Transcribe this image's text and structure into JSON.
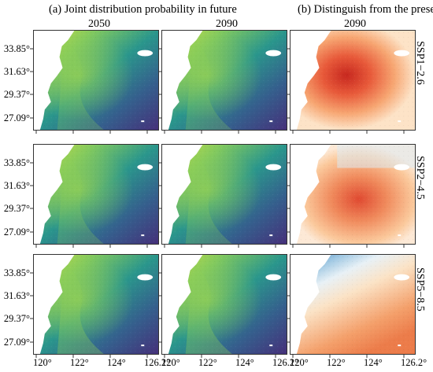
{
  "header": {
    "a": "(a) Joint distribution probability in future",
    "b": "(b) Distinguish from the present"
  },
  "columns": [
    "2050",
    "2090",
    "2090"
  ],
  "rows": [
    "SSP1−2.6",
    "SSP2−4.5",
    "SSP5−8.5"
  ],
  "y_ticks": [
    "33.85°",
    "31.63°",
    "29.37°",
    "27.09°"
  ],
  "x_ticks": [
    "120°",
    "122°",
    "124°",
    "126.2°"
  ],
  "colors": {
    "viridis_low": "#46327e",
    "viridis_mid": "#2a9d8f",
    "viridis_high": "#d6e43b",
    "diff_low": "#2f76b5",
    "diff_mid": "#fdf2e2",
    "diff_high": "#d73027"
  }
}
